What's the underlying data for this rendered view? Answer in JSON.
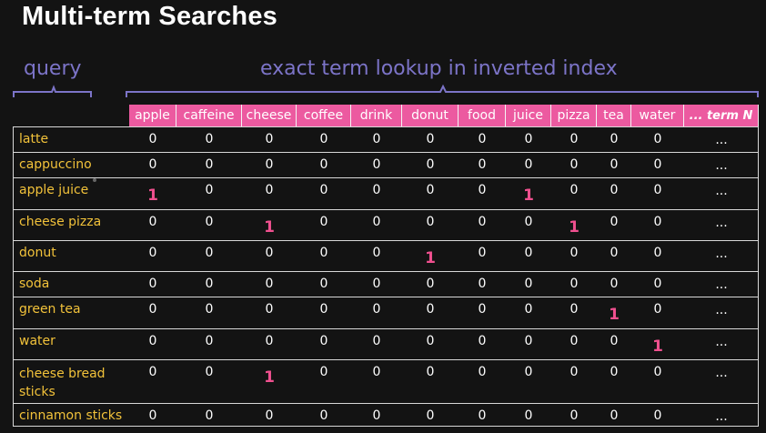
{
  "slide": {
    "title": "Multi-term Searches",
    "query_label": "query",
    "lookup_label": "exact term lookup in inverted index"
  },
  "columns": [
    "apple",
    "caffeine",
    "cheese",
    "coffee",
    "drink",
    "donut",
    "food",
    "juice",
    "pizza",
    "tea",
    "water",
    "... term N"
  ],
  "rows": [
    {
      "label": "latte",
      "cells": [
        "0",
        "0",
        "0",
        "0",
        "0",
        "0",
        "0",
        "0",
        "0",
        "0",
        "0",
        "..."
      ]
    },
    {
      "label": "cappuccino",
      "cells": [
        "0",
        "0",
        "0",
        "0",
        "0",
        "0",
        "0",
        "0",
        "0",
        "0",
        "0",
        "..."
      ]
    },
    {
      "label": "apple juice",
      "cells": [
        "1",
        "0",
        "0",
        "0",
        "0",
        "0",
        "0",
        "1",
        "0",
        "0",
        "0",
        "..."
      ]
    },
    {
      "label": "cheese pizza",
      "cells": [
        "0",
        "0",
        "1",
        "0",
        "0",
        "0",
        "0",
        "0",
        "1",
        "0",
        "0",
        "..."
      ]
    },
    {
      "label": "donut",
      "cells": [
        "0",
        "0",
        "0",
        "0",
        "0",
        "1",
        "0",
        "0",
        "0",
        "0",
        "0",
        "..."
      ]
    },
    {
      "label": "soda",
      "cells": [
        "0",
        "0",
        "0",
        "0",
        "0",
        "0",
        "0",
        "0",
        "0",
        "0",
        "0",
        "..."
      ]
    },
    {
      "label": "green tea",
      "cells": [
        "0",
        "0",
        "0",
        "0",
        "0",
        "0",
        "0",
        "0",
        "0",
        "1",
        "0",
        "..."
      ]
    },
    {
      "label": "water",
      "cells": [
        "0",
        "0",
        "0",
        "0",
        "0",
        "0",
        "0",
        "0",
        "0",
        "0",
        "1",
        "..."
      ]
    },
    {
      "label": "cheese bread sticks",
      "label_lines": [
        "cheese bread",
        "sticks"
      ],
      "cells": [
        "0",
        "0",
        "1",
        "0",
        "0",
        "0",
        "0",
        "0",
        "0",
        "0",
        "0",
        "..."
      ]
    },
    {
      "label": "cinnamon sticks",
      "cells": [
        "0",
        "0",
        "0",
        "0",
        "0",
        "0",
        "0",
        "0",
        "0",
        "0",
        "0",
        "..."
      ]
    }
  ],
  "colors": {
    "background": "#131313",
    "header_fill": "#ec5aa0",
    "query_text": "#f2c23a",
    "hit_text": "#f0508f",
    "annotation": "#7c74c8"
  }
}
